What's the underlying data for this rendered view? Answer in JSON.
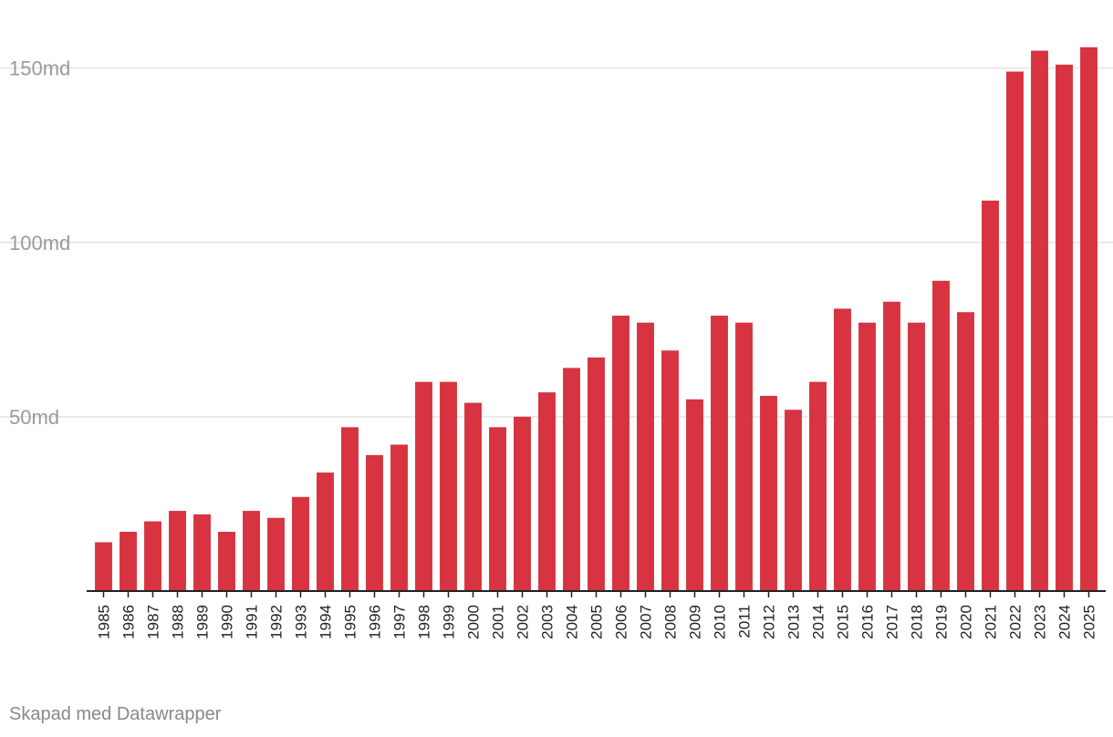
{
  "chart_data": {
    "type": "bar",
    "categories": [
      "1985",
      "1986",
      "1987",
      "1988",
      "1989",
      "1990",
      "1991",
      "1992",
      "1993",
      "1994",
      "1995",
      "1996",
      "1997",
      "1998",
      "1999",
      "2000",
      "2001",
      "2002",
      "2003",
      "2004",
      "2005",
      "2006",
      "2007",
      "2008",
      "2009",
      "2010",
      "2011",
      "2012",
      "2013",
      "2014",
      "2015",
      "2016",
      "2017",
      "2018",
      "2019",
      "2020",
      "2021",
      "2022",
      "2023",
      "2024",
      "2025"
    ],
    "values": [
      14,
      17,
      20,
      23,
      22,
      17,
      23,
      21,
      27,
      34,
      47,
      39,
      42,
      60,
      60,
      54,
      47,
      50,
      57,
      64,
      67,
      79,
      77,
      69,
      55,
      79,
      77,
      56,
      52,
      60,
      81,
      77,
      83,
      77,
      89,
      80,
      112,
      149,
      155,
      151,
      156
    ],
    "ylim": [
      0,
      163
    ],
    "yticks": [
      {
        "value": 50,
        "label": "50md"
      },
      {
        "value": 100,
        "label": "100md"
      },
      {
        "value": 150,
        "label": "150md"
      }
    ],
    "title": "",
    "xlabel": "",
    "ylabel": "",
    "grid": true,
    "colors": {
      "bar": "#d73340",
      "grid": "#e4e4e4",
      "axis": "#222222"
    }
  },
  "credit": "Skapad med Datawrapper"
}
